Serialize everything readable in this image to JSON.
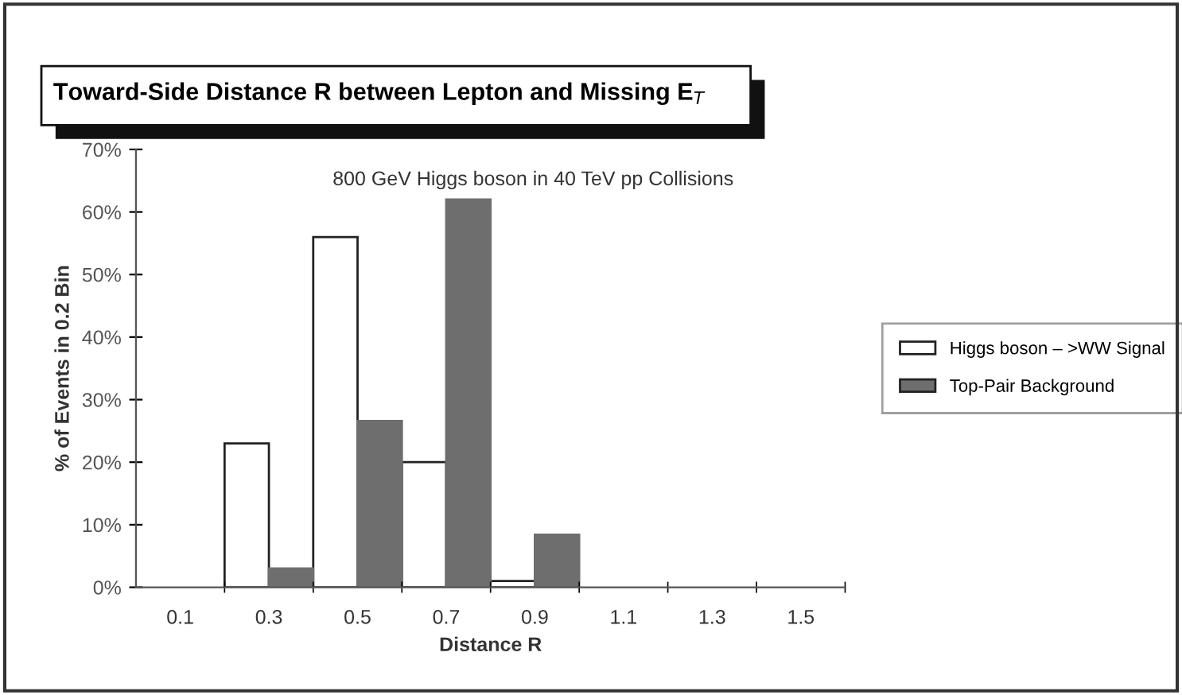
{
  "chart_data": {
    "type": "bar",
    "title": "Toward-Side Distance R between Lepton and Missing E$_{T}$",
    "xlabel": "Distance R",
    "ylabel": "% of Events in 0.2 Bin",
    "annotations": [
      "800 GeV Higgs boson in 40 TeV pp Collisions"
    ],
    "categories": [
      "0.1",
      "0.3",
      "0.5",
      "0.7",
      "0.9",
      "1.1",
      "1.3",
      "1.5"
    ],
    "series": [
      {
        "name": "Higgs boson – >WW Signal",
        "color": "#ffffff",
        "values": [
          0,
          23,
          56,
          20,
          1,
          0,
          0,
          0
        ]
      },
      {
        "name": "Top-Pair Background",
        "color": "#6e6e6e",
        "values": [
          0,
          3,
          26.6,
          62,
          8.4,
          0,
          0,
          0
        ]
      }
    ],
    "ylim": [
      0,
      70
    ],
    "yticks": [
      {
        "value": 0,
        "label": "0%"
      },
      {
        "value": 10,
        "label": "10%"
      },
      {
        "value": 20,
        "label": "20%"
      },
      {
        "value": 30,
        "label": "30%"
      },
      {
        "value": 40,
        "label": "40%"
      },
      {
        "value": 50,
        "label": "50%"
      },
      {
        "value": 60,
        "label": "60%"
      },
      {
        "value": 70,
        "label": "70%"
      }
    ],
    "grid": false,
    "legend": "right"
  }
}
